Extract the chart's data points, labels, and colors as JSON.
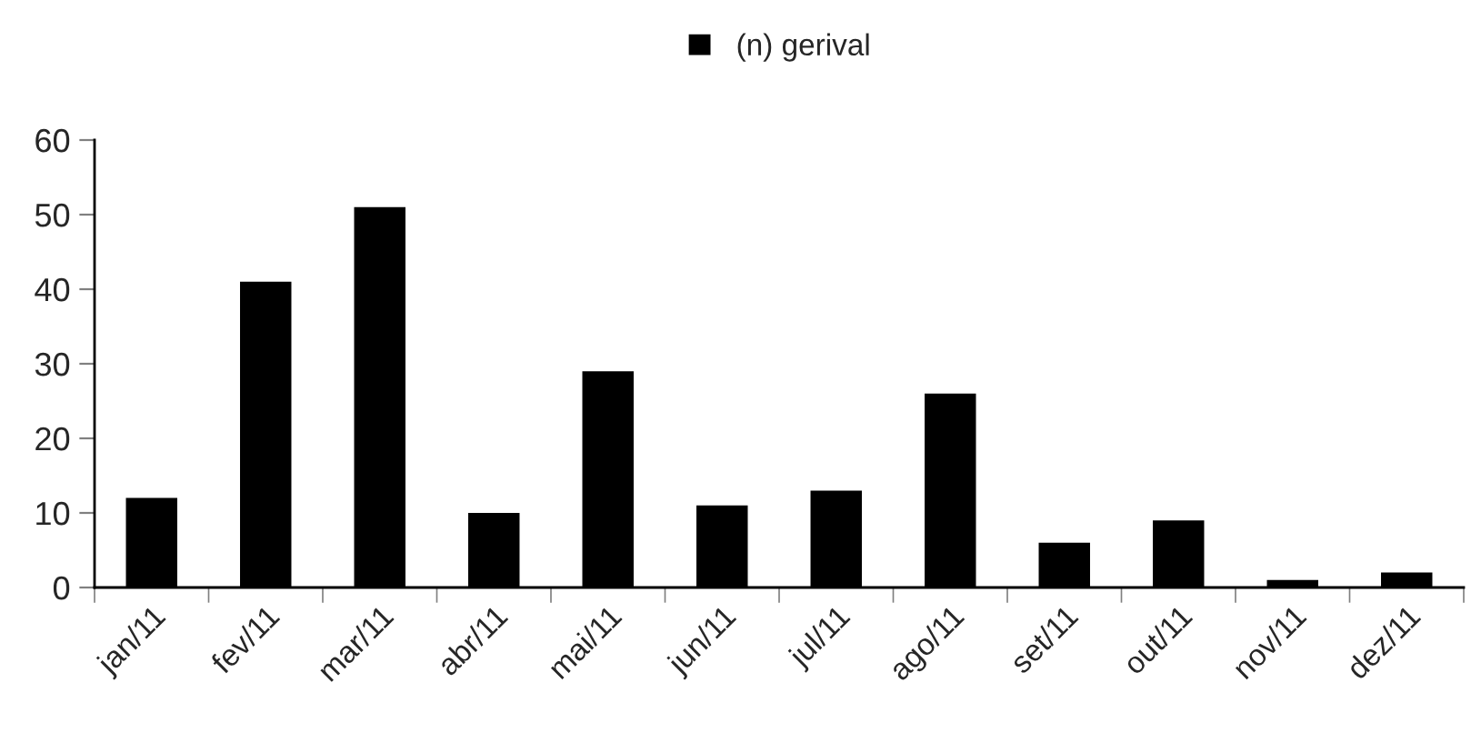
{
  "chart_data": {
    "type": "bar",
    "categories": [
      "jan/11",
      "fev/11",
      "mar/11",
      "abr/11",
      "mai/11",
      "jun/11",
      "jul/11",
      "ago/11",
      "set/11",
      "out/11",
      "nov/11",
      "dez/11"
    ],
    "series": [
      {
        "name": "(n) gerival",
        "color": "#000000",
        "values": [
          12,
          41,
          51,
          10,
          29,
          11,
          13,
          26,
          6,
          9,
          1,
          2
        ]
      }
    ],
    "ylim": [
      0,
      60
    ],
    "yticks": [
      0,
      10,
      20,
      30,
      40,
      50,
      60
    ],
    "grid": false,
    "legend": "top"
  }
}
